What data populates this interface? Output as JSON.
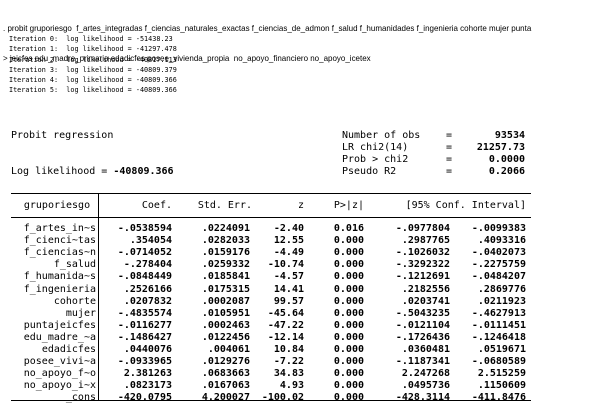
{
  "command": {
    "line1": ". probit gruporiesgo  f_artes_integradas f_ciencias_naturales_exactas f_ciencias_de_admon f_salud f_humanidades f_ingenieria cohorte mujer punta",
    "line2": "> jeicfes edu_madre_primaria edadicfes posee_vivienda_propia  no_apoyo_financiero no_apoyo_icetex"
  },
  "iterations": [
    {
      "label": "Iteration 0:",
      "text": "log likelihood = ",
      "value": "-51438.23"
    },
    {
      "label": "Iteration 1:",
      "text": "log likelihood = ",
      "value": "-41297.478"
    },
    {
      "label": "Iteration 2:",
      "text": "log likelihood = ",
      "value": "-40817.113"
    },
    {
      "label": "Iteration 3:",
      "text": "log likelihood = ",
      "value": "-40809.379"
    },
    {
      "label": "Iteration 4:",
      "text": "log likelihood = ",
      "value": "-40809.366"
    },
    {
      "label": "Iteration 5:",
      "text": "log likelihood = ",
      "value": "-40809.366"
    }
  ],
  "header": {
    "title": "Probit regression",
    "loglik_label": "Log likelihood = ",
    "loglik_value": "-40809.366",
    "stats": [
      {
        "label": "Number of obs",
        "eq": "=",
        "value": "93534"
      },
      {
        "label": "LR chi2(14)",
        "eq": "=",
        "value": "21257.73"
      },
      {
        "label": "Prob > chi2",
        "eq": "=",
        "value": "0.0000"
      },
      {
        "label": "Pseudo R2",
        "eq": "=",
        "value": "0.2066"
      }
    ]
  },
  "table": {
    "columns": [
      "gruporiesgo",
      "Coef.",
      "Std. Err.",
      "z",
      "P>|z|",
      "[95% Conf. Interval]"
    ],
    "rows": [
      {
        "var": "f_artes_in~s",
        "coef": "-.0538594",
        "se": ".0224091",
        "z": "-2.40",
        "p": "0.016",
        "lo": "-.0977804",
        "hi": "-.0099383"
      },
      {
        "var": "f_cienci~tas",
        "coef": ".354054",
        "se": ".0282033",
        "z": "12.55",
        "p": "0.000",
        "lo": ".2987765",
        "hi": ".4093316"
      },
      {
        "var": "f_ciencias~n",
        "coef": "-.0714052",
        "se": ".0159176",
        "z": "-4.49",
        "p": "0.000",
        "lo": "-.1026032",
        "hi": "-.0402073"
      },
      {
        "var": "f_salud",
        "coef": "-.278404",
        "se": ".0259332",
        "z": "-10.74",
        "p": "0.000",
        "lo": "-.3292322",
        "hi": "-.2275759"
      },
      {
        "var": "f_humanida~s",
        "coef": "-.0848449",
        "se": ".0185841",
        "z": "-4.57",
        "p": "0.000",
        "lo": "-.1212691",
        "hi": "-.0484207"
      },
      {
        "var": "f_ingenieria",
        "coef": ".2526166",
        "se": ".0175315",
        "z": "14.41",
        "p": "0.000",
        "lo": ".2182556",
        "hi": ".2869776"
      },
      {
        "var": "cohorte",
        "coef": ".0207832",
        "se": ".0002087",
        "z": "99.57",
        "p": "0.000",
        "lo": ".0203741",
        "hi": ".0211923"
      },
      {
        "var": "mujer",
        "coef": "-.4835574",
        "se": ".0105951",
        "z": "-45.64",
        "p": "0.000",
        "lo": "-.5043235",
        "hi": "-.4627913"
      },
      {
        "var": "puntajeicfes",
        "coef": "-.0116277",
        "se": ".0002463",
        "z": "-47.22",
        "p": "0.000",
        "lo": "-.0121104",
        "hi": "-.0111451"
      },
      {
        "var": "edu_madre_~a",
        "coef": "-.1486427",
        "se": ".0122456",
        "z": "-12.14",
        "p": "0.000",
        "lo": "-.1726436",
        "hi": "-.1246418"
      },
      {
        "var": "edadicfes",
        "coef": ".0440076",
        "se": ".004061",
        "z": "10.84",
        "p": "0.000",
        "lo": ".0360481",
        "hi": ".0519671"
      },
      {
        "var": "posee_vivi~a",
        "coef": "-.0933965",
        "se": ".0129276",
        "z": "-7.22",
        "p": "0.000",
        "lo": "-.1187341",
        "hi": "-.0680589"
      },
      {
        "var": "no_apoyo_f~o",
        "coef": "2.381263",
        "se": ".0683663",
        "z": "34.83",
        "p": "0.000",
        "lo": "2.247268",
        "hi": "2.515259"
      },
      {
        "var": "no_apoyo_i~x",
        "coef": ".0823173",
        "se": ".0167063",
        "z": "4.93",
        "p": "0.000",
        "lo": ".0495736",
        "hi": ".1150609"
      },
      {
        "var": "_cons",
        "coef": "-420.0795",
        "se": "4.200027",
        "z": "-100.02",
        "p": "0.000",
        "lo": "-428.3114",
        "hi": "-411.8476"
      }
    ]
  }
}
